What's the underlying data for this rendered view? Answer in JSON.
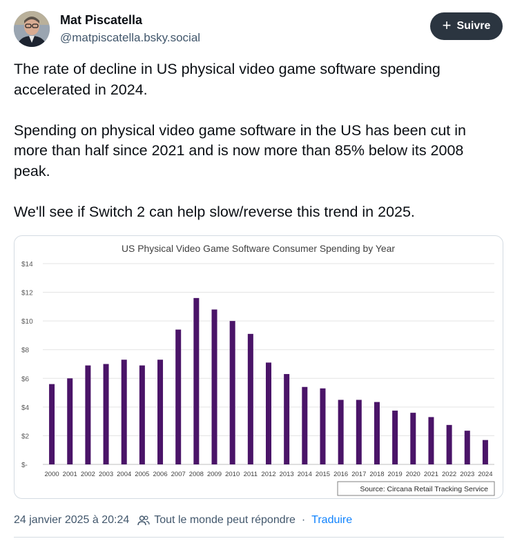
{
  "author": {
    "display_name": "Mat Piscatella",
    "handle": "@matpiscatella.bsky.social",
    "follow_label": "Suivre"
  },
  "post": {
    "paragraphs": [
      "The rate of decline in US physical video game software spending accelerated in 2024.",
      "Spending on physical video game software in the US has been cut in more than half since 2021 and is now more than 85% below its 2008 peak.",
      "We'll see if Switch 2 can help slow/reverse this trend in 2025."
    ],
    "timestamp": "24 janvier 2025 à 20:24",
    "reply_setting": "Tout le monde peut répondre",
    "separator": "·",
    "translate_label": "Traduire"
  },
  "colors": {
    "bar": "#4a1468",
    "follow_bg": "#2b3540",
    "link": "#1083fe",
    "muted": "#42576c"
  },
  "chart_data": {
    "type": "bar",
    "title": "US Physical Video Game Software Consumer Spending by Year",
    "xlabel": "",
    "ylabel": "",
    "source": "Source: Circana Retail Tracking Service",
    "categories": [
      "2000",
      "2001",
      "2002",
      "2003",
      "2004",
      "2005",
      "2006",
      "2007",
      "2008",
      "2009",
      "2010",
      "2011",
      "2012",
      "2013",
      "2014",
      "2015",
      "2016",
      "2017",
      "2018",
      "2019",
      "2020",
      "2021",
      "2022",
      "2023",
      "2024"
    ],
    "values": [
      5.6,
      6.0,
      6.9,
      7.0,
      7.3,
      6.9,
      7.3,
      9.4,
      11.6,
      10.8,
      10.0,
      9.1,
      7.1,
      6.3,
      5.4,
      5.3,
      4.5,
      4.5,
      4.35,
      3.75,
      3.6,
      3.3,
      2.75,
      2.35,
      1.7
    ],
    "y_tick_labels": [
      "$-",
      "$2",
      "$4",
      "$6",
      "$8",
      "$10",
      "$12",
      "$14"
    ],
    "y_tick_values": [
      0,
      2,
      4,
      6,
      8,
      10,
      12,
      14
    ],
    "ylim": [
      0,
      14
    ],
    "grid": true,
    "legend": "none"
  }
}
